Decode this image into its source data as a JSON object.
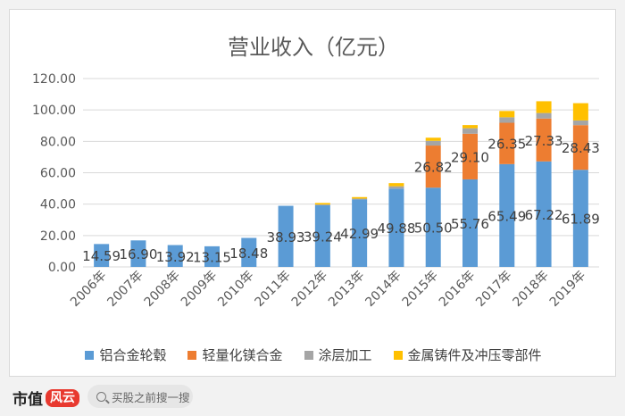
{
  "chart_data": {
    "type": "bar",
    "stacked": true,
    "title": "营业收入（亿元）",
    "categories": [
      "2006年",
      "2007年",
      "2008年",
      "2009年",
      "2010年",
      "2011年",
      "2012年",
      "2013年",
      "2014年",
      "2015年",
      "2016年",
      "2017年",
      "2018年",
      "2019年"
    ],
    "ylim": [
      0,
      120
    ],
    "yticks": [
      "0.00",
      "20.00",
      "40.00",
      "60.00",
      "80.00",
      "100.00",
      "120.00"
    ],
    "grid": true,
    "legend_position": "bottom",
    "series": [
      {
        "name": "铝合金轮毂",
        "color": "#5b9bd5",
        "values": [
          14.59,
          16.9,
          13.92,
          13.15,
          18.48,
          38.93,
          39.24,
          42.99,
          49.88,
          50.5,
          55.76,
          65.49,
          67.22,
          61.89
        ],
        "labels": [
          "14.59",
          "16.90",
          "13.92",
          "13.15",
          "18.48",
          "38.93",
          "39.24",
          "42.99",
          "49.88",
          "50.50",
          "55.76",
          "65.49",
          "67.22",
          "61.89"
        ]
      },
      {
        "name": "轻量化镁合金",
        "color": "#ed7d31",
        "values": [
          0,
          0,
          0,
          0,
          0,
          0,
          0,
          0,
          0,
          26.82,
          29.1,
          26.35,
          27.33,
          28.43
        ],
        "labels": [
          "",
          "",
          "",
          "",
          "",
          "",
          "",
          "",
          "",
          "26.82",
          "29.10",
          "26.35",
          "27.33",
          "28.43"
        ]
      },
      {
        "name": "涂层加工",
        "color": "#a5a5a5",
        "values": [
          0,
          0,
          0,
          0,
          0,
          0,
          0.5,
          0.5,
          1.5,
          3.0,
          3.5,
          3.5,
          3.5,
          3.0
        ],
        "labels": [
          "",
          "",
          "",
          "",
          "",
          "",
          "",
          "",
          "",
          "",
          "",
          "",
          "",
          ""
        ]
      },
      {
        "name": "金属铸件及冲压零部件",
        "color": "#ffc000",
        "values": [
          0,
          0,
          0,
          0,
          0,
          0,
          1.0,
          1.0,
          2.0,
          2.0,
          2.0,
          4.0,
          7.5,
          11.0
        ],
        "labels": [
          "",
          "",
          "",
          "",
          "",
          "",
          "",
          "",
          "",
          "",
          "",
          "",
          "",
          ""
        ]
      }
    ]
  },
  "footer": {
    "brand": "市值",
    "brand_logo": "风云",
    "search_placeholder": "买股之前搜一搜",
    "search_icon": "search-icon"
  }
}
